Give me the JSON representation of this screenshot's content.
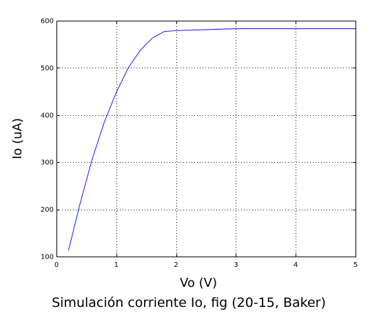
{
  "chart_data": {
    "type": "line",
    "title": "Simulación corriente Io, fig (20-15, Baker)",
    "xlabel": "Vo (V)",
    "ylabel": "Io (uA)",
    "xlim": [
      0,
      5
    ],
    "ylim": [
      100,
      600
    ],
    "x_ticks": [
      "0",
      "1",
      "2",
      "3",
      "4",
      "5"
    ],
    "y_ticks": [
      "100",
      "200",
      "300",
      "400",
      "500",
      "600"
    ],
    "grid": true,
    "series": [
      {
        "color": "#0000ff",
        "x": [
          0.2,
          0.4,
          0.6,
          0.8,
          1.0,
          1.2,
          1.4,
          1.6,
          1.8,
          2.0,
          2.5,
          3.0,
          3.5,
          4.0,
          4.5,
          5.0
        ],
        "y": [
          113,
          215,
          308,
          385,
          448,
          500,
          537,
          563,
          577,
          579,
          581,
          583,
          583,
          583,
          583,
          583
        ]
      }
    ]
  }
}
